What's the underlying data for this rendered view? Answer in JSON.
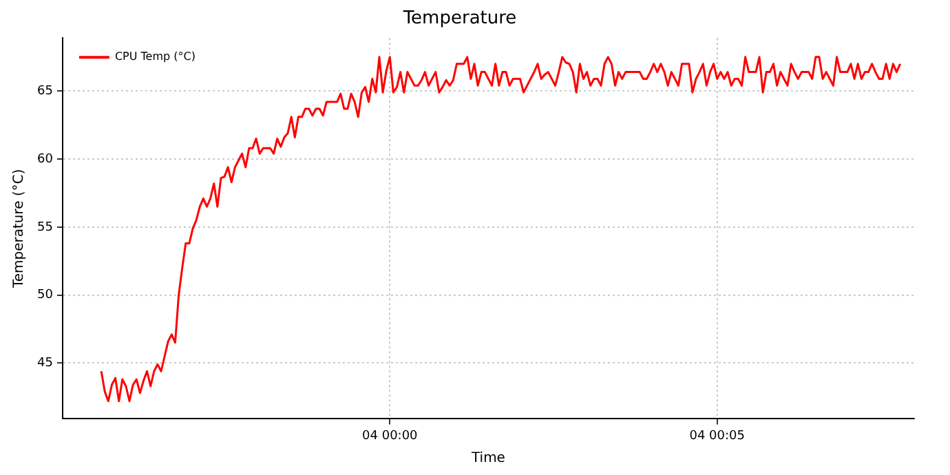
{
  "chart_data": {
    "type": "line",
    "title": "Temperature",
    "xlabel": "Time",
    "ylabel": "Temperature (°C)",
    "categories": [
      null,
      null,
      null,
      null,
      null,
      null,
      null,
      null,
      null,
      null,
      null,
      null,
      null,
      null,
      null,
      null,
      null,
      null,
      null,
      null,
      null,
      null,
      null,
      null,
      null,
      null,
      null,
      null,
      null,
      null,
      null,
      null,
      null,
      null,
      null,
      null,
      null,
      null,
      null,
      null,
      null,
      null,
      null,
      null,
      null,
      null,
      null,
      null,
      null,
      null,
      null,
      null,
      null,
      null,
      null,
      null,
      null,
      null,
      null,
      null,
      null,
      null,
      null,
      null,
      null,
      null,
      null,
      null,
      null,
      null,
      null,
      null,
      null,
      null,
      null,
      null,
      null,
      null,
      null,
      null,
      null,
      null,
      "04 00:00",
      null,
      null,
      null,
      null,
      null,
      null,
      null,
      null,
      null,
      null,
      null,
      null,
      null,
      null,
      null,
      null,
      null,
      null,
      null,
      null,
      null,
      null,
      null,
      null,
      null,
      null,
      null,
      null,
      null,
      null,
      null,
      null,
      null,
      null,
      null,
      null,
      null,
      null,
      null,
      null,
      null,
      null,
      null,
      null,
      null,
      null,
      null,
      null,
      null,
      null,
      null,
      null,
      null,
      null,
      null,
      null,
      null,
      null,
      null,
      null,
      null,
      null,
      null,
      null,
      null,
      null,
      null,
      null,
      null,
      null,
      null,
      null,
      null,
      null,
      null,
      null,
      null,
      null,
      null,
      null,
      null,
      null,
      null,
      null,
      null,
      null,
      null,
      null,
      null,
      null,
      null,
      null,
      "04 00:05",
      null,
      null,
      null,
      null,
      null,
      null,
      null,
      null,
      null,
      null,
      null,
      null,
      null,
      null,
      null,
      null,
      null,
      null,
      null,
      null,
      null,
      null,
      null,
      null,
      null,
      null,
      null,
      null,
      null,
      null,
      null,
      null,
      null,
      null,
      null,
      null,
      null,
      null,
      null,
      null,
      null,
      null,
      null,
      null,
      null,
      null,
      null,
      null,
      null,
      null,
      null,
      null
    ],
    "series": [
      {
        "name": "CPU Temp (°C)",
        "color": "#ff0000",
        "values": [
          44.4,
          42.9,
          42.2,
          43.4,
          43.9,
          42.2,
          43.8,
          43.3,
          42.2,
          43.4,
          43.8,
          42.8,
          43.7,
          44.4,
          43.3,
          44.4,
          44.9,
          44.4,
          45.5,
          46.6,
          47.1,
          46.5,
          50.0,
          52.0,
          53.8,
          53.8,
          54.9,
          55.5,
          56.5,
          57.1,
          56.5,
          57.1,
          58.2,
          56.5,
          58.6,
          58.7,
          59.4,
          58.3,
          59.4,
          59.9,
          60.4,
          59.4,
          60.8,
          60.8,
          61.5,
          60.4,
          60.8,
          60.8,
          60.8,
          60.4,
          61.5,
          60.9,
          61.6,
          61.9,
          63.1,
          61.6,
          63.1,
          63.1,
          63.7,
          63.7,
          63.2,
          63.7,
          63.7,
          63.2,
          64.2,
          64.2,
          64.2,
          64.2,
          64.8,
          63.7,
          63.7,
          64.8,
          64.2,
          63.1,
          64.9,
          65.3,
          64.2,
          65.9,
          64.9,
          67.5,
          64.9,
          66.5,
          67.5,
          64.9,
          65.3,
          66.4,
          64.9,
          66.4,
          65.9,
          65.4,
          65.4,
          65.8,
          66.4,
          65.4,
          65.9,
          66.4,
          64.9,
          65.3,
          65.8,
          65.4,
          65.8,
          67.0,
          67.0,
          67.0,
          67.5,
          65.9,
          67.0,
          65.4,
          66.4,
          66.4,
          65.9,
          65.4,
          67.0,
          65.4,
          66.4,
          66.4,
          65.4,
          65.9,
          65.9,
          65.9,
          64.9,
          65.4,
          65.9,
          66.4,
          67.0,
          65.9,
          66.2,
          66.4,
          65.9,
          65.4,
          66.4,
          67.5,
          67.1,
          67.0,
          66.4,
          64.9,
          67.0,
          65.9,
          66.4,
          65.4,
          65.9,
          65.9,
          65.4,
          67.0,
          67.5,
          67.0,
          65.4,
          66.4,
          65.9,
          66.4,
          66.4,
          66.4,
          66.4,
          66.4,
          65.9,
          65.9,
          66.4,
          67.0,
          66.4,
          67.0,
          66.4,
          65.4,
          66.4,
          65.9,
          65.4,
          67.0,
          67.0,
          67.0,
          64.9,
          65.9,
          66.4,
          67.0,
          65.4,
          66.4,
          67.0,
          65.9,
          66.4,
          65.9,
          66.4,
          65.4,
          65.9,
          65.9,
          65.4,
          67.5,
          66.4,
          66.4,
          66.4,
          67.5,
          64.9,
          66.4,
          66.4,
          67.0,
          65.4,
          66.4,
          65.9,
          65.4,
          67.0,
          66.4,
          65.9,
          66.4,
          66.4,
          66.4,
          65.9,
          67.5,
          67.5,
          65.9,
          66.4,
          65.9,
          65.4,
          67.5,
          66.4,
          66.4,
          66.4,
          67.0,
          65.9,
          67.0,
          65.9,
          66.4,
          66.4,
          67.0,
          66.4,
          65.9,
          65.9,
          67.0,
          65.9,
          67.0,
          66.4,
          67.0
        ]
      }
    ],
    "ylim": [
      40.9,
      68.9
    ],
    "yticks": [
      45,
      50,
      55,
      60,
      65
    ],
    "grid": true,
    "legend": "top left",
    "marker": "none",
    "line_style": "solid"
  }
}
